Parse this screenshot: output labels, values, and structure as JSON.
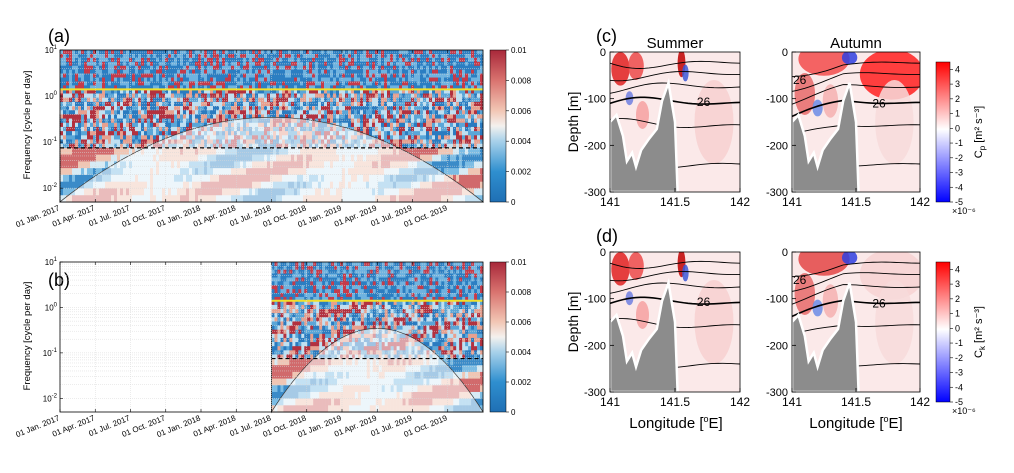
{
  "chart_data": [
    {
      "type": "heatmap",
      "panel_label": "(a)",
      "title": "",
      "ylabel": "Frequency [cycle per day]",
      "xlabel": "",
      "y_scale": "log",
      "ylim": [
        0.005,
        10
      ],
      "y_ticks": [
        "10^-2",
        "10^-1",
        "10^0",
        "10^1"
      ],
      "x_tick_labels": [
        "01 Jan. 2017",
        "01 Apr. 2017",
        "01 Jul. 2017",
        "01 Oct. 2017",
        "01 Jan. 2018",
        "01 Apr. 2018",
        "01 Jul. 2018",
        "01 Oct. 2018",
        "01 Jan. 2019",
        "01 Apr. 2019",
        "01 Jul. 2019",
        "01 Oct. 2019"
      ],
      "data_start_fraction": 0.0,
      "reference_lines": {
        "solid_yellow_cpd": 1.4,
        "dashed_black_cpd": 0.075
      },
      "colorbar": {
        "min": 0,
        "max": 0.01,
        "tick_labels": [
          "0.01",
          "0.008",
          "0.006",
          "0.004",
          "0.002",
          "0"
        ]
      }
    },
    {
      "type": "heatmap",
      "panel_label": "(b)",
      "title": "",
      "ylabel": "Frequency [cycle per day]",
      "xlabel": "",
      "y_scale": "log",
      "ylim": [
        0.005,
        10
      ],
      "y_ticks": [
        "10^-2",
        "10^-1",
        "10^0",
        "10^1"
      ],
      "x_tick_labels": [
        "01 Jan. 2017",
        "01 Apr. 2017",
        "01 Jul. 2017",
        "01 Oct. 2017",
        "01 Jan. 2018",
        "01 Apr. 2018",
        "01 Jul. 2018",
        "01 Oct. 2018",
        "01 Jan. 2019",
        "01 Apr. 2019",
        "01 Jul. 2019",
        "01 Oct. 2019"
      ],
      "data_start_fraction": 0.5,
      "reference_lines": {
        "solid_yellow_cpd": 1.4,
        "dashed_black_cpd": 0.075
      },
      "colorbar": {
        "min": 0,
        "max": 0.01,
        "tick_labels": [
          "0.01",
          "0.008",
          "0.006",
          "0.004",
          "0.002",
          "0"
        ]
      }
    },
    {
      "type": "heatmap",
      "panel_label": "(c)",
      "subplot_titles": [
        "Summer",
        "Autumn"
      ],
      "ylabel": "Depth [m]",
      "xlabel": "",
      "x_ticks": [
        "141",
        "141.5",
        "142"
      ],
      "y_ticks": [
        "0",
        "-100",
        "-200",
        "-300"
      ],
      "xlim": [
        141,
        142
      ],
      "ylim": [
        -300,
        0
      ],
      "contour_labels": {
        "summer": [
          "26"
        ],
        "autumn": [
          "26",
          "26"
        ]
      },
      "colorbar": {
        "label_main": "C",
        "label_sub": "p",
        "label_units": "[m² s⁻³]",
        "tick_labels": [
          "4",
          "3",
          "2",
          "1",
          "0",
          "-1",
          "-2",
          "-3",
          "-4",
          "-5"
        ],
        "multiplier": "×10⁻⁶",
        "min": -5,
        "max": 4.5
      }
    },
    {
      "type": "heatmap",
      "panel_label": "(d)",
      "subplot_titles": [],
      "ylabel": "Depth [m]",
      "xlabel": "Longitude [°E]",
      "x_ticks": [
        "141",
        "141.5",
        "142"
      ],
      "y_ticks": [
        "0",
        "-100",
        "-200",
        "-300"
      ],
      "xlim": [
        141,
        142
      ],
      "ylim": [
        -300,
        0
      ],
      "contour_labels": {
        "summer": [
          "26"
        ],
        "autumn": [
          "26",
          "26"
        ]
      },
      "colorbar": {
        "label_main": "C",
        "label_sub": "k",
        "label_units": "[m² s⁻³]",
        "tick_labels": [
          "4",
          "3",
          "2",
          "1",
          "0",
          "-1",
          "-2",
          "-3",
          "-4",
          "-5"
        ],
        "multiplier": "×10⁻⁶",
        "min": -5,
        "max": 4.5
      }
    }
  ],
  "labels": {
    "xlabel_d_left": "Longitude [",
    "xlabel_d_sup": "o",
    "xlabel_d_right": "E]"
  }
}
